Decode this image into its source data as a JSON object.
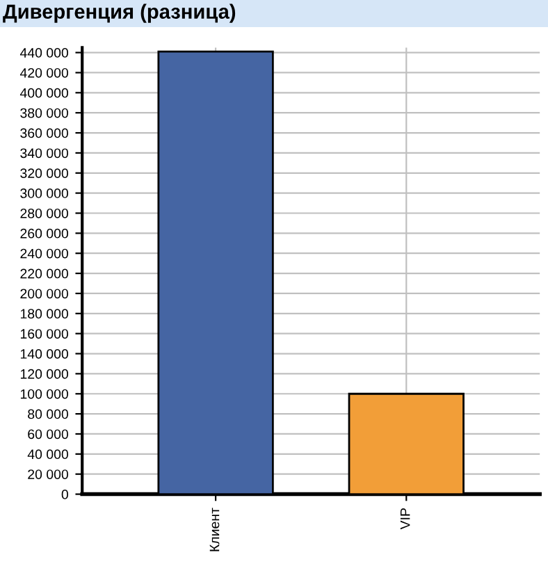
{
  "chart_data": {
    "type": "bar",
    "title": "Дивергенция (разница)",
    "categories": [
      "Клиент",
      "VIP"
    ],
    "values": [
      441000,
      100000
    ],
    "colors": [
      "#4565a3",
      "#f29e38"
    ],
    "ylim": [
      0,
      445000
    ],
    "yticks": [
      {
        "value": 0,
        "label": "0"
      },
      {
        "value": 20000,
        "label": "20 000"
      },
      {
        "value": 40000,
        "label": "40 000"
      },
      {
        "value": 60000,
        "label": "60 000"
      },
      {
        "value": 80000,
        "label": "80 000"
      },
      {
        "value": 100000,
        "label": "100 000"
      },
      {
        "value": 120000,
        "label": "120 000"
      },
      {
        "value": 140000,
        "label": "140 000"
      },
      {
        "value": 160000,
        "label": "160 000"
      },
      {
        "value": 180000,
        "label": "180 000"
      },
      {
        "value": 200000,
        "label": "200 000"
      },
      {
        "value": 220000,
        "label": "220 000"
      },
      {
        "value": 240000,
        "label": "240 000"
      },
      {
        "value": 260000,
        "label": "260 000"
      },
      {
        "value": 280000,
        "label": "280 000"
      },
      {
        "value": 300000,
        "label": "300 000"
      },
      {
        "value": 320000,
        "label": "320 000"
      },
      {
        "value": 340000,
        "label": "340 000"
      },
      {
        "value": 360000,
        "label": "360 000"
      },
      {
        "value": 380000,
        "label": "380 000"
      },
      {
        "value": 400000,
        "label": "400 000"
      },
      {
        "value": 420000,
        "label": "420 000"
      },
      {
        "value": 440000,
        "label": "440 000"
      }
    ],
    "grid": true
  }
}
